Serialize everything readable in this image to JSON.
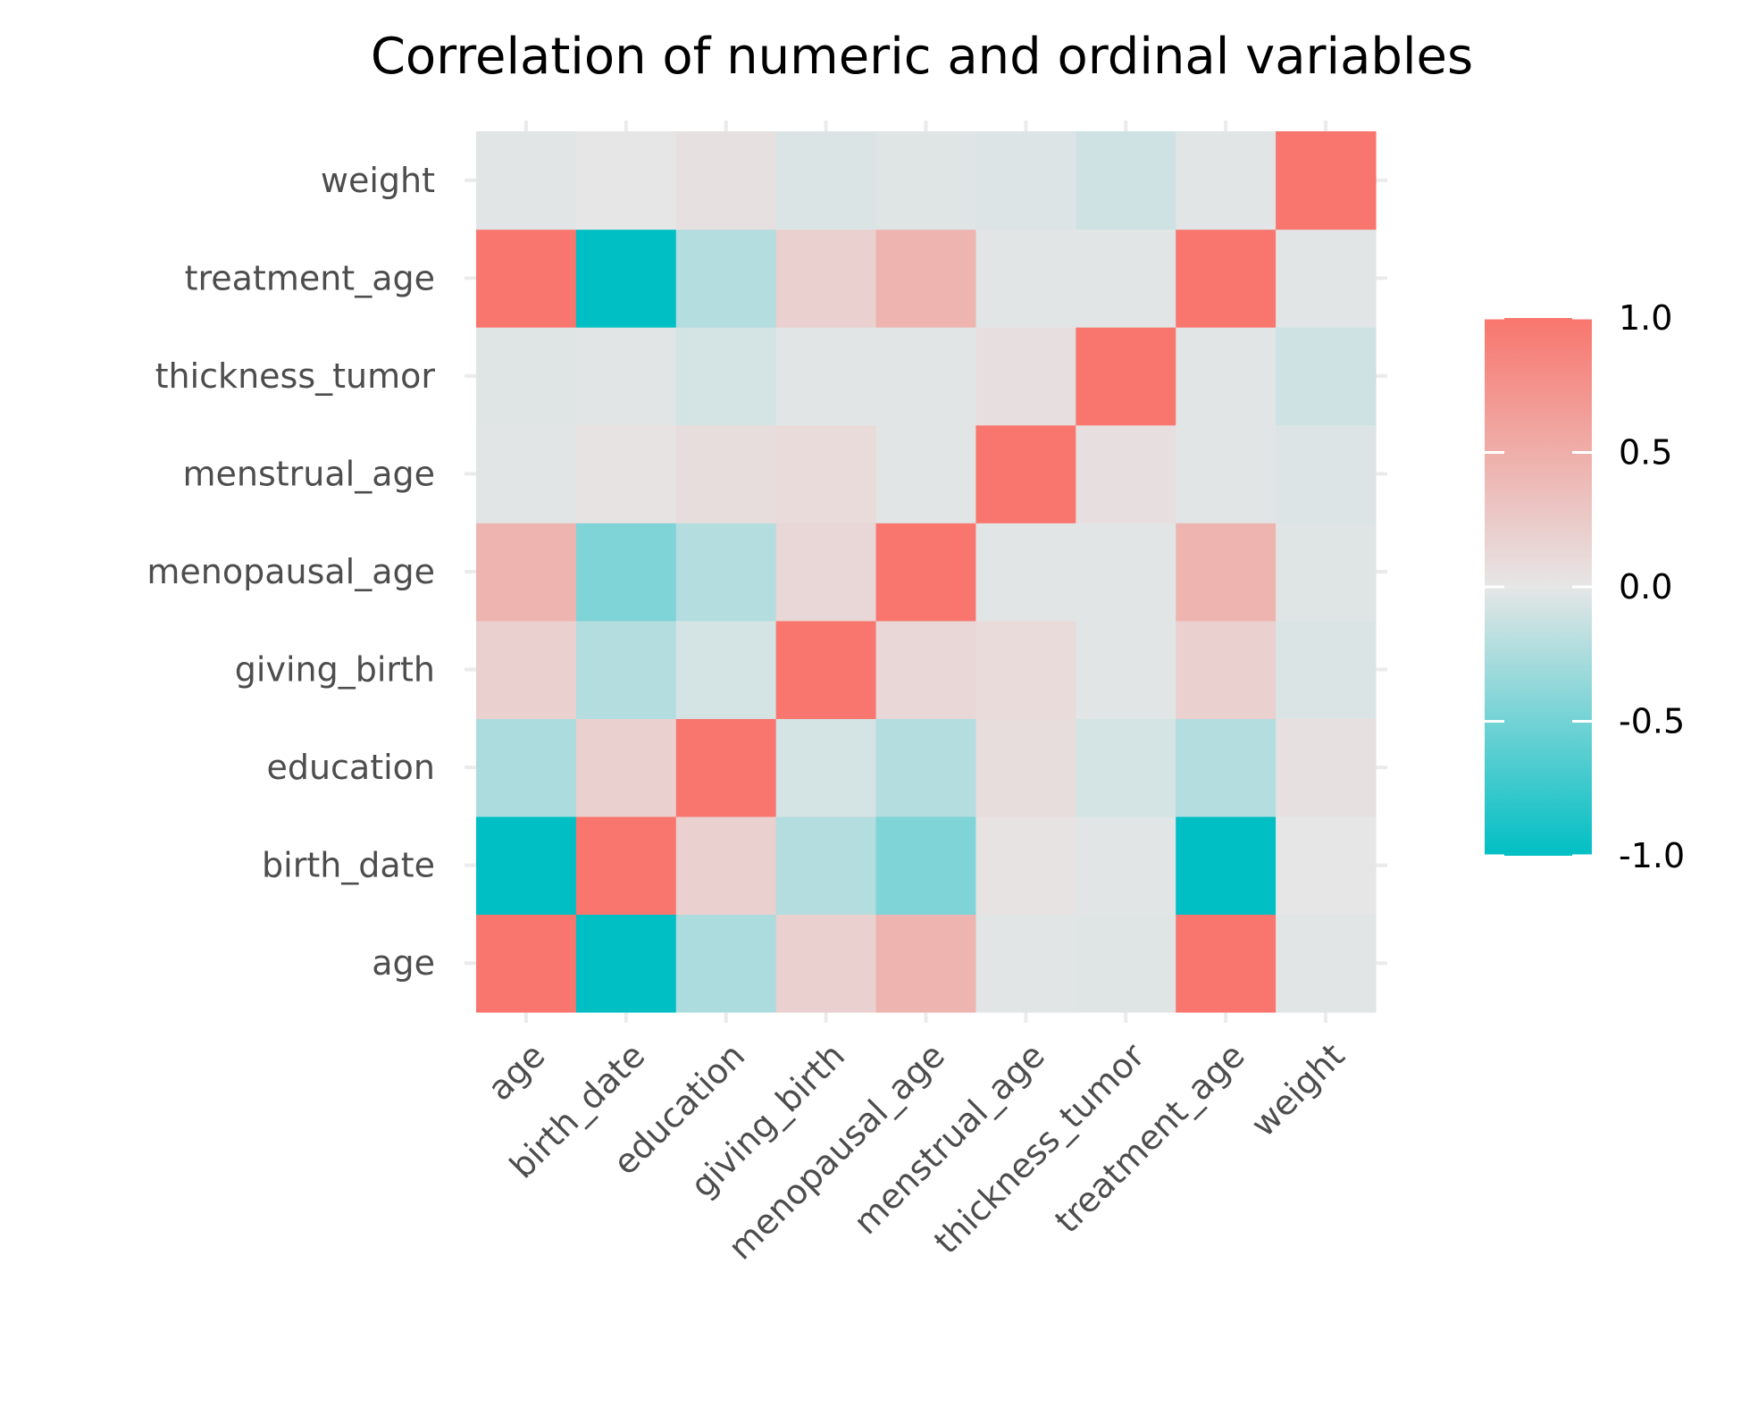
{
  "chart_data": {
    "type": "heatmap",
    "title": "Correlation of numeric and ordinal variables",
    "xlabel": "",
    "ylabel": "",
    "variables": [
      "age",
      "birth_date",
      "education",
      "giving_birth",
      "menopausal_age",
      "menstrual_age",
      "thickness_tumor",
      "treatment_age",
      "weight"
    ],
    "matrix": [
      [
        1.0,
        -1.0,
        -0.25,
        0.2,
        0.45,
        -0.02,
        -0.03,
        1.0,
        -0.02
      ],
      [
        -1.0,
        1.0,
        0.2,
        -0.22,
        -0.45,
        0.03,
        -0.02,
        -1.0,
        0.0
      ],
      [
        -0.25,
        0.2,
        1.0,
        -0.08,
        -0.22,
        0.08,
        -0.08,
        -0.22,
        0.05
      ],
      [
        0.2,
        -0.22,
        -0.08,
        1.0,
        0.13,
        0.1,
        -0.02,
        0.2,
        -0.05
      ],
      [
        0.45,
        -0.45,
        -0.22,
        0.13,
        1.0,
        -0.02,
        -0.02,
        0.45,
        -0.03
      ],
      [
        -0.02,
        0.03,
        0.08,
        0.1,
        -0.02,
        1.0,
        0.06,
        -0.02,
        -0.04
      ],
      [
        -0.03,
        -0.02,
        -0.08,
        -0.02,
        -0.02,
        0.06,
        1.0,
        -0.02,
        -0.1
      ],
      [
        1.0,
        -1.0,
        -0.22,
        0.2,
        0.45,
        -0.02,
        -0.02,
        1.0,
        -0.02
      ],
      [
        -0.02,
        0.0,
        0.05,
        -0.05,
        -0.03,
        -0.04,
        -0.1,
        -0.02,
        1.0
      ]
    ],
    "colorbar": {
      "ticks": [
        "1.0",
        "0.5",
        "0.0",
        "-0.5",
        "-1.0"
      ],
      "range": [
        -1,
        1
      ],
      "low_color": "#00BFC4",
      "mid_color": "#E6E6E6",
      "high_color": "#F8766D"
    },
    "grid": true,
    "legend_position": "right"
  }
}
